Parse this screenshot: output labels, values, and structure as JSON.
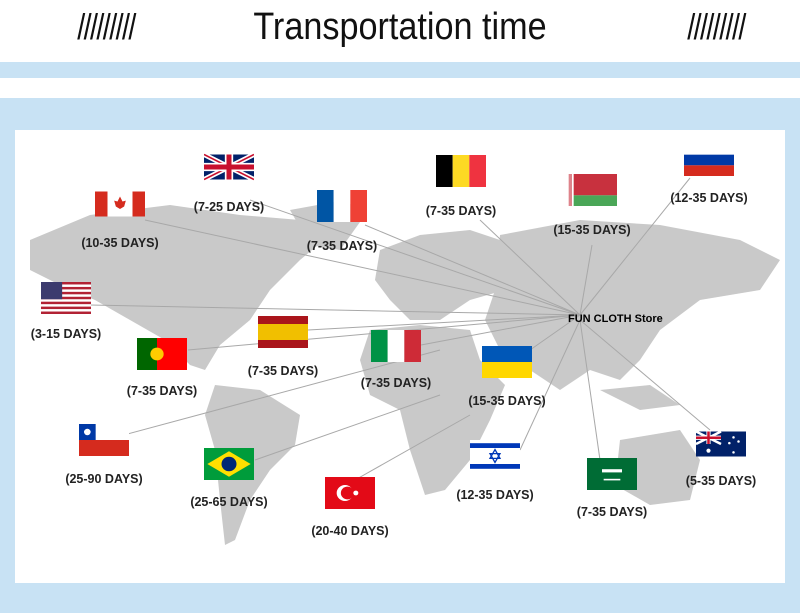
{
  "header": {
    "title": "Transportation time",
    "left_decoration": "/////////",
    "right_decoration": "/////////"
  },
  "colors": {
    "band": "#c8e2f4",
    "land": "#c9c9c9",
    "lines": "#a8a8a8"
  },
  "hub": {
    "label": "FUN CLOTH Store"
  },
  "countries": [
    {
      "flag": "uk-flag-icon",
      "days": "(7-25 DAYS)"
    },
    {
      "flag": "canada-flag-icon",
      "days": "(10-35 DAYS)"
    },
    {
      "flag": "france-flag-icon",
      "days": "(7-35 DAYS)"
    },
    {
      "flag": "belgium-flag-icon",
      "days": "(7-35 DAYS)"
    },
    {
      "flag": "belarus-flag-icon",
      "days": "(15-35 DAYS)"
    },
    {
      "flag": "russia-flag-icon",
      "days": "(12-35 DAYS)"
    },
    {
      "flag": "usa-flag-icon",
      "days": "(3-15 DAYS)"
    },
    {
      "flag": "portugal-flag-icon",
      "days": "(7-35 DAYS)"
    },
    {
      "flag": "spain-flag-icon",
      "days": "(7-35 DAYS)"
    },
    {
      "flag": "italy-flag-icon",
      "days": "(7-35 DAYS)"
    },
    {
      "flag": "ukraine-flag-icon",
      "days": "(15-35 DAYS)"
    },
    {
      "flag": "chile-flag-icon",
      "days": "(25-90 DAYS)"
    },
    {
      "flag": "brazil-flag-icon",
      "days": "(25-65 DAYS)"
    },
    {
      "flag": "turkey-flag-icon",
      "days": "(20-40 DAYS)"
    },
    {
      "flag": "israel-flag-icon",
      "days": "(12-35 DAYS)"
    },
    {
      "flag": "saudi-arabia-flag-icon",
      "days": "(7-35 DAYS)"
    },
    {
      "flag": "australia-flag-icon",
      "days": "(5-35 DAYS)"
    }
  ]
}
